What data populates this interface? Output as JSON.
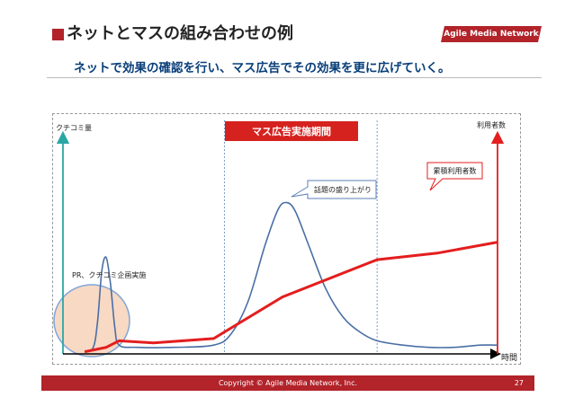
{
  "header": {
    "title": "ネットとマスの組み合わせの例",
    "subtitle": "ネットで効果の確認を行い、マス広告でその効果を更に広げていく。"
  },
  "logo": {
    "text": "Agile Media Network"
  },
  "chart_data": {
    "type": "line",
    "ylabel_left": "クチコミ量",
    "ylabel_right": "利用者数",
    "xlabel": "時間",
    "period_label": "マス広告実施期間",
    "annotations": {
      "pr": "PR、クチコミ企画実施",
      "buzz": "話題の盛り上がり",
      "cumulative": "累積利用者数"
    },
    "x_range": [
      0,
      100
    ],
    "y_range": [
      0,
      100
    ],
    "period": [
      36.5,
      72.0
    ],
    "series": [
      {
        "name": "クチコミ量",
        "color": "#4a6fa5",
        "points": [
          [
            4,
            1
          ],
          [
            6,
            3
          ],
          [
            7,
            15
          ],
          [
            8,
            38
          ],
          [
            9,
            44
          ],
          [
            10,
            32
          ],
          [
            11,
            12
          ],
          [
            12,
            4
          ],
          [
            16,
            3
          ],
          [
            25,
            3
          ],
          [
            34,
            4
          ],
          [
            38,
            9
          ],
          [
            42,
            24
          ],
          [
            46,
            50
          ],
          [
            49,
            66
          ],
          [
            51,
            69
          ],
          [
            53,
            65
          ],
          [
            56,
            50
          ],
          [
            60,
            30
          ],
          [
            64,
            17
          ],
          [
            68,
            10
          ],
          [
            72,
            6
          ],
          [
            78,
            4
          ],
          [
            84,
            3
          ],
          [
            90,
            3
          ],
          [
            96,
            4
          ],
          [
            100,
            4
          ]
        ]
      },
      {
        "name": "累積利用者数",
        "color": "#e41e1e",
        "points": [
          [
            4,
            1
          ],
          [
            9,
            3
          ],
          [
            12,
            6
          ],
          [
            20,
            5
          ],
          [
            34,
            7
          ],
          [
            50,
            26
          ],
          [
            72,
            43
          ],
          [
            86,
            46
          ],
          [
            100,
            51
          ]
        ]
      }
    ]
  },
  "footer": {
    "copyright": "Copyright © Agile Media Network, Inc.",
    "page": "27"
  }
}
